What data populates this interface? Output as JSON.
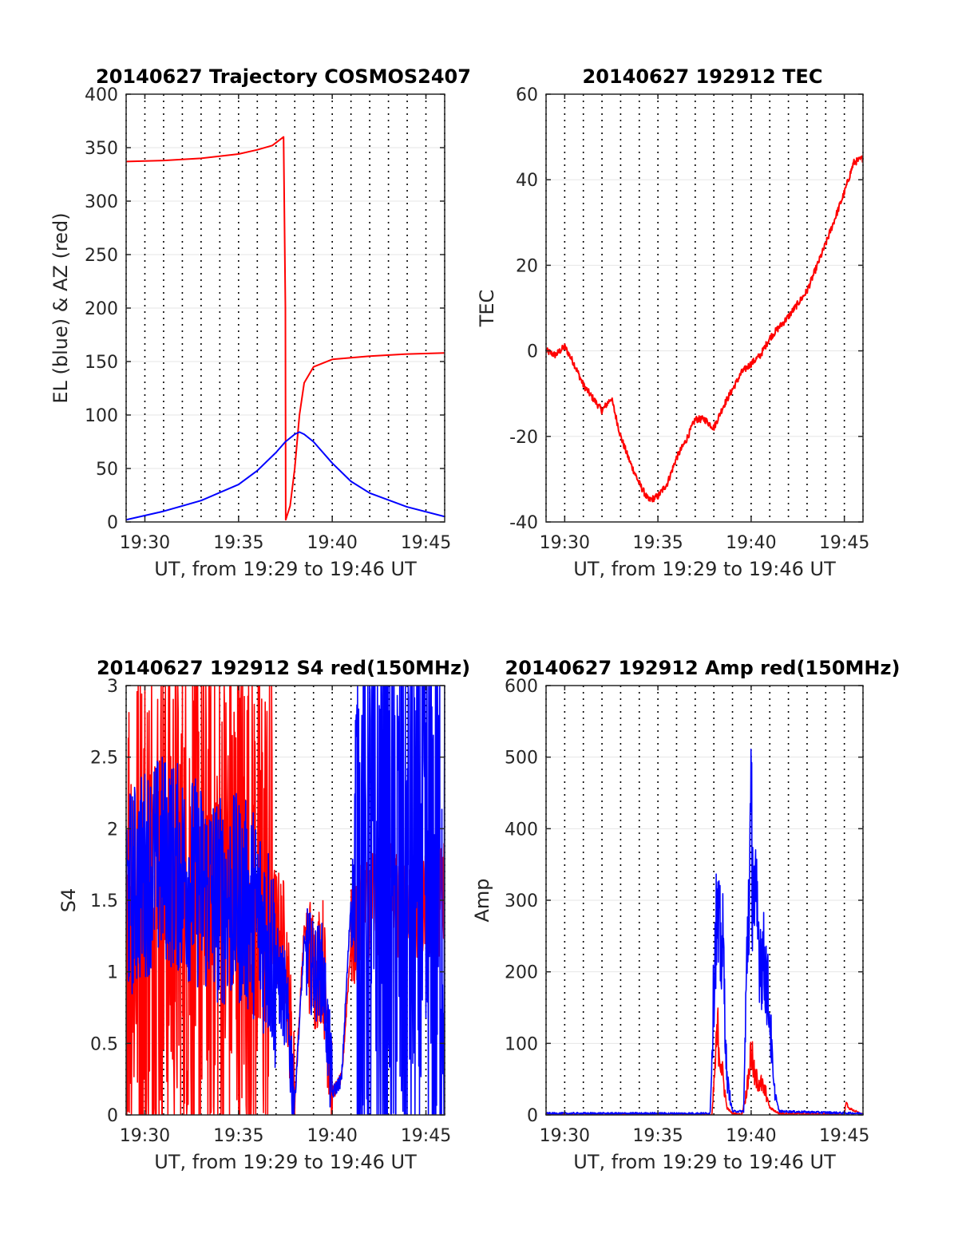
{
  "chart_data": [
    {
      "type": "line",
      "title": "20140627 Trajectory COSMOS2407",
      "xlabel": "UT, from 19:29 to 19:46 UT",
      "ylabel": "EL (blue) & AZ (red)",
      "xlim": [
        "19:29",
        "19:46"
      ],
      "ylim": [
        0,
        400
      ],
      "x_ticks": [
        "19:30",
        "19:35",
        "19:40",
        "19:45"
      ],
      "y_ticks": [
        "0",
        "50",
        "100",
        "150",
        "200",
        "250",
        "300",
        "350",
        "400"
      ],
      "grid": "dotted vertical every minute, horizontal at ticks",
      "series": [
        {
          "color": "#ff0000",
          "x": [
            "19:29:00",
            "19:31:00",
            "19:33:00",
            "19:35:00",
            "19:36:00",
            "19:36:48",
            "19:37:24",
            "19:37:30",
            "19:37:31",
            "19:37:45",
            "19:38:00",
            "19:38:15",
            "19:38:30",
            "19:39:00",
            "19:40:00",
            "19:42:00",
            "19:44:00",
            "19:46:00"
          ],
          "values": [
            337,
            338,
            340,
            344,
            348,
            352,
            360,
            200,
            2,
            15,
            50,
            100,
            130,
            145,
            152,
            155,
            157,
            158
          ]
        },
        {
          "color": "#0000ff",
          "x": [
            "19:29:00",
            "19:31:00",
            "19:33:00",
            "19:35:00",
            "19:36:00",
            "19:37:00",
            "19:37:30",
            "19:38:00",
            "19:38:15",
            "19:38:30",
            "19:39:00",
            "19:40:00",
            "19:41:00",
            "19:42:00",
            "19:44:00",
            "19:46:00"
          ],
          "values": [
            2,
            10,
            20,
            35,
            48,
            65,
            75,
            82,
            84,
            82,
            75,
            55,
            38,
            27,
            14,
            5
          ]
        }
      ]
    },
    {
      "type": "line",
      "title": "20140627 192912 TEC",
      "xlabel": "UT, from 19:29 to 19:46 UT",
      "ylabel": "TEC",
      "xlim": [
        "19:29",
        "19:46"
      ],
      "ylim": [
        -40,
        60
      ],
      "x_ticks": [
        "19:30",
        "19:35",
        "19:40",
        "19:45"
      ],
      "y_ticks": [
        "-40",
        "-20",
        "0",
        "20",
        "40",
        "60"
      ],
      "grid": "dotted vertical every minute, horizontal at ticks",
      "series": [
        {
          "color": "#ff0000",
          "x": [
            "19:29:00",
            "19:29:30",
            "19:30:00",
            "19:30:30",
            "19:31:00",
            "19:32:00",
            "19:32:30",
            "19:33:00",
            "19:33:30",
            "19:34:00",
            "19:34:30",
            "19:35:00",
            "19:35:30",
            "19:36:00",
            "19:36:30",
            "19:37:00",
            "19:37:30",
            "19:38:00",
            "19:38:30",
            "19:39:00",
            "19:39:30",
            "19:40:00",
            "19:40:30",
            "19:41:00",
            "19:42:00",
            "19:43:00",
            "19:44:00",
            "19:45:00",
            "19:45:30",
            "19:46:00"
          ],
          "values": [
            0,
            -1,
            1,
            -3,
            -8,
            -14,
            -11,
            -20,
            -26,
            -31,
            -35,
            -34,
            -31,
            -25,
            -21,
            -16,
            -16,
            -18,
            -13,
            -9,
            -5,
            -3,
            -1,
            3,
            8,
            14,
            25,
            37,
            44,
            45
          ]
        }
      ]
    },
    {
      "type": "line",
      "title": "20140627 192912 S4 red(150MHz)",
      "xlabel": "UT, from 19:29 to 19:46 UT",
      "ylabel": "S4",
      "xlim": [
        "19:29",
        "19:46"
      ],
      "ylim": [
        0,
        3
      ],
      "x_ticks": [
        "19:30",
        "19:35",
        "19:40",
        "19:45"
      ],
      "y_ticks": [
        "0",
        "0.5",
        "1",
        "1.5",
        "2",
        "2.5",
        "3"
      ],
      "grid": "dotted vertical every minute, horizontal at ticks",
      "series": [
        {
          "color": "#ff0000",
          "x": [
            "19:29:00",
            "19:30:00",
            "19:31:00",
            "19:32:00",
            "19:33:00",
            "19:34:00",
            "19:35:00",
            "19:36:00",
            "19:36:40",
            "19:37:00",
            "19:37:30",
            "19:38:00",
            "19:38:30",
            "19:39:00",
            "19:39:30",
            "19:40:00",
            "19:40:30",
            "19:41:00",
            "19:42:00",
            "19:43:00",
            "19:44:00",
            "19:45:00",
            "19:46:00"
          ],
          "values": [
            1.5,
            1.5,
            1.6,
            1.5,
            1.6,
            1.5,
            1.6,
            1.5,
            1.4,
            1.3,
            1.2,
            0.1,
            1.3,
            1.0,
            1.1,
            0.15,
            0.25,
            1.2,
            1.5,
            1.5,
            1.5,
            1.5,
            1.5
          ]
        },
        {
          "color": "#0000ff",
          "x": [
            "19:29:00",
            "19:30:00",
            "19:31:00",
            "19:32:00",
            "19:33:00",
            "19:34:00",
            "19:35:00",
            "19:36:00",
            "19:36:40",
            "19:37:00",
            "19:37:30",
            "19:38:00",
            "19:38:30",
            "19:39:00",
            "19:39:30",
            "19:40:00",
            "19:40:30",
            "19:41:00",
            "19:42:00",
            "19:43:00",
            "19:44:00",
            "19:45:00",
            "19:46:00"
          ],
          "values": [
            1.5,
            1.7,
            1.8,
            1.7,
            1.6,
            1.5,
            1.5,
            1.4,
            1.2,
            1.0,
            0.8,
            0.1,
            1.2,
            1.0,
            1.0,
            0.15,
            0.25,
            1.5,
            1.6,
            1.5,
            1.5,
            1.5,
            1.5
          ]
        }
      ]
    },
    {
      "type": "line",
      "title": "20140627 192912 Amp red(150MHz)",
      "xlabel": "UT, from 19:29 to 19:46 UT",
      "ylabel": "Amp",
      "xlim": [
        "19:29",
        "19:46"
      ],
      "ylim": [
        0,
        600
      ],
      "x_ticks": [
        "19:30",
        "19:35",
        "19:40",
        "19:45"
      ],
      "y_ticks": [
        "0",
        "100",
        "200",
        "300",
        "400",
        "500",
        "600"
      ],
      "grid": "dotted vertical every minute, horizontal at ticks",
      "series": [
        {
          "color": "#ff0000",
          "x": [
            "19:29:00",
            "19:37:54",
            "19:38:06",
            "19:38:12",
            "19:38:18",
            "19:38:30",
            "19:38:42",
            "19:39:00",
            "19:39:30",
            "19:39:48",
            "19:40:00",
            "19:40:06",
            "19:40:12",
            "19:40:30",
            "19:40:48",
            "19:41:00",
            "19:41:30",
            "19:45:00",
            "19:45:06",
            "19:45:12",
            "19:46:00"
          ],
          "values": [
            0,
            0,
            80,
            120,
            90,
            50,
            10,
            2,
            0,
            40,
            90,
            70,
            50,
            45,
            30,
            10,
            2,
            0,
            20,
            10,
            0
          ]
        },
        {
          "color": "#0000ff",
          "x": [
            "19:29:00",
            "19:37:48",
            "19:38:00",
            "19:38:06",
            "19:38:18",
            "19:38:30",
            "19:38:42",
            "19:39:00",
            "19:39:36",
            "19:39:48",
            "19:40:00",
            "19:40:06",
            "19:40:12",
            "19:40:30",
            "19:40:48",
            "19:41:00",
            "19:41:12",
            "19:41:30",
            "19:46:00"
          ],
          "values": [
            2,
            2,
            180,
            270,
            240,
            230,
            50,
            5,
            5,
            250,
            400,
            330,
            290,
            230,
            200,
            140,
            40,
            5,
            2
          ]
        }
      ]
    }
  ]
}
